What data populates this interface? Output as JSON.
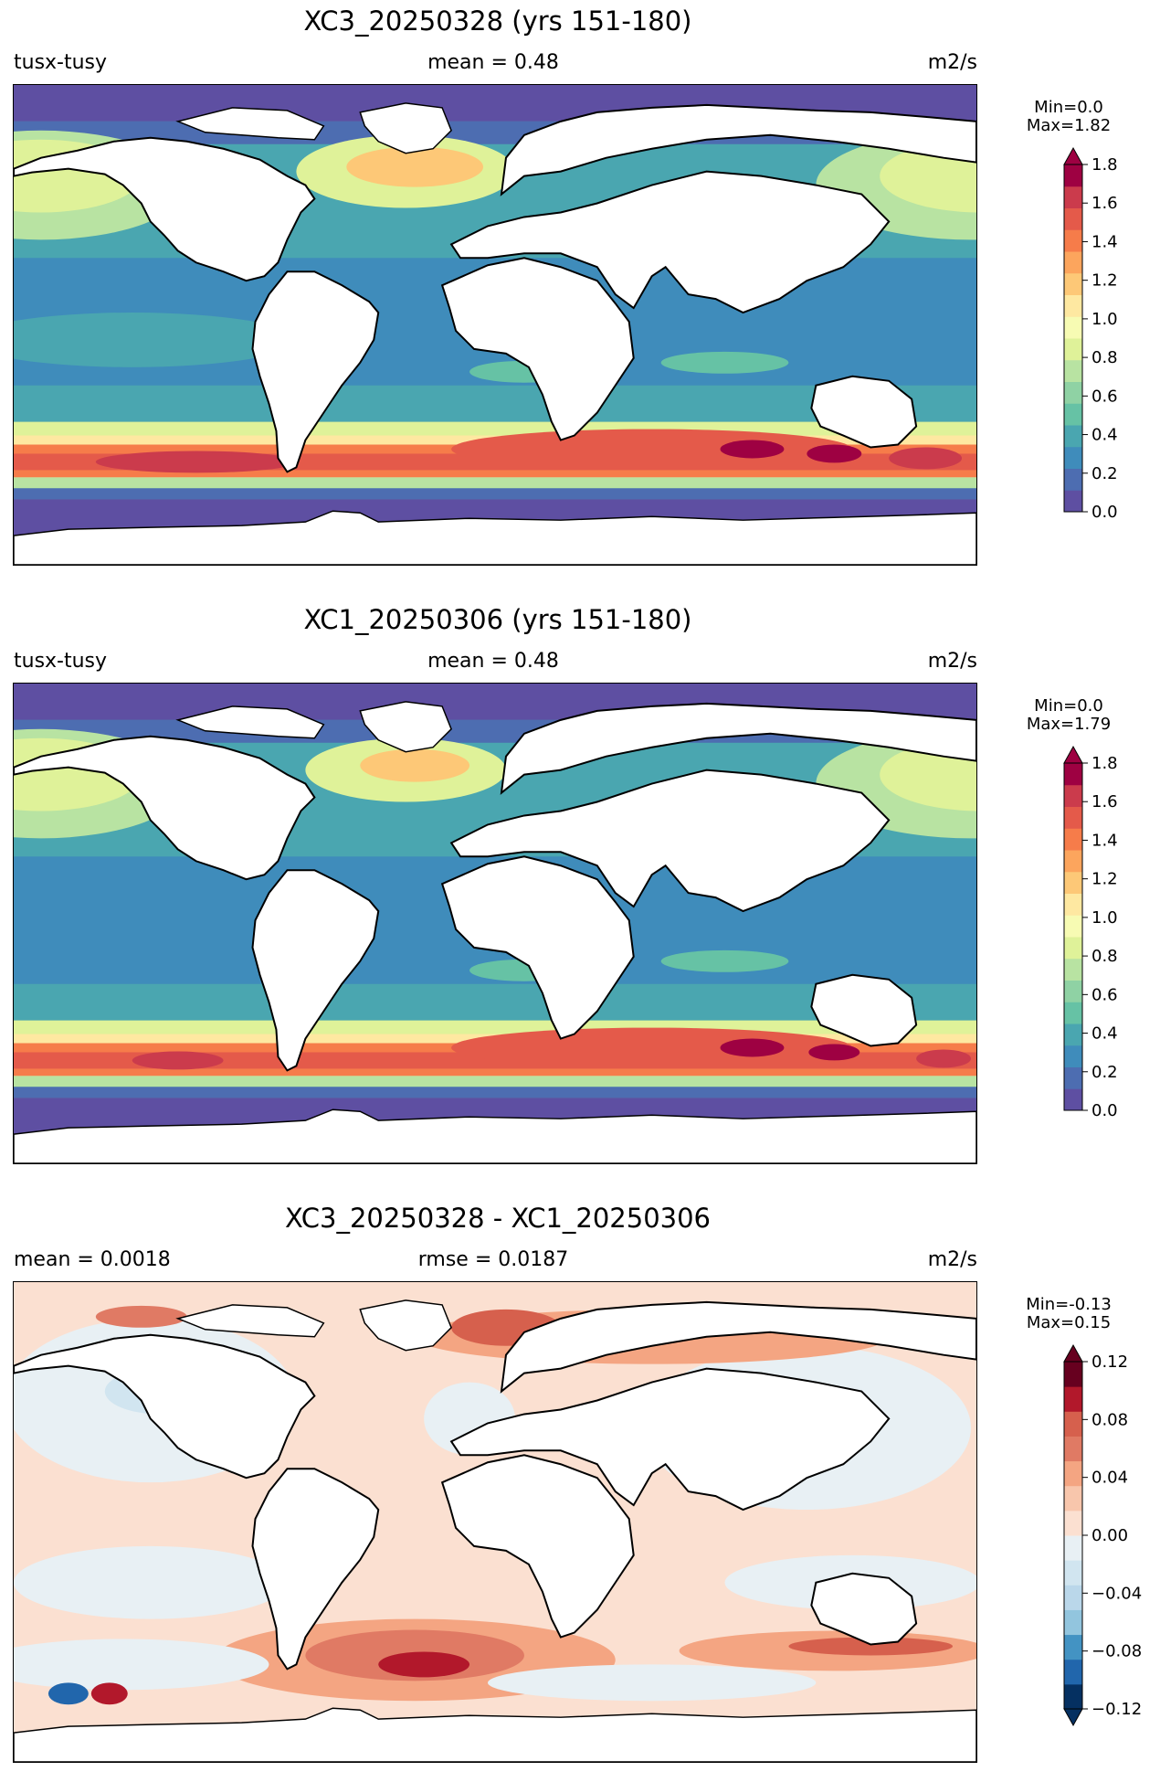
{
  "panels": [
    {
      "title": "XC3_20250328 (yrs 151-180)",
      "left_label": "tusx-tusy",
      "center_label": "mean = 0.48",
      "right_label": "m2/s",
      "min_text": "Min=0.0",
      "max_text": "Max=1.82",
      "colormap": "Spectral_r",
      "colorbar_ticks": [
        "0.0",
        "0.2",
        "0.4",
        "0.6",
        "0.8",
        "1.0",
        "1.2",
        "1.4",
        "1.6",
        "1.8"
      ],
      "colorbar_range": [
        0.0,
        1.8
      ]
    },
    {
      "title": "XC1_20250306 (yrs 151-180)",
      "left_label": "tusx-tusy",
      "center_label": "mean = 0.48",
      "right_label": "m2/s",
      "min_text": "Min=0.0",
      "max_text": "Max=1.79",
      "colormap": "Spectral_r",
      "colorbar_ticks": [
        "0.0",
        "0.2",
        "0.4",
        "0.6",
        "0.8",
        "1.0",
        "1.2",
        "1.4",
        "1.6",
        "1.8"
      ],
      "colorbar_range": [
        0.0,
        1.8
      ]
    },
    {
      "title": "XC3_20250328 - XC1_20250306",
      "left_label": "mean = 0.0018",
      "center_label": "rmse = 0.0187",
      "right_label": "m2/s",
      "min_text": "Min=-0.13",
      "max_text": "Max=0.15",
      "colormap": "RdBu_r",
      "colorbar_ticks": [
        "−0.12",
        "−0.08",
        "−0.04",
        "0.00",
        "0.04",
        "0.08",
        "0.12"
      ],
      "colorbar_range": [
        -0.12,
        0.12
      ]
    }
  ],
  "colors": {
    "spectral": [
      "#5e4fa2",
      "#4d6db1",
      "#3f8cbb",
      "#4aa6b0",
      "#66c2a5",
      "#8fd2a4",
      "#b8e3a2",
      "#dff299",
      "#f7fbb3",
      "#fee8a1",
      "#fdc877",
      "#fca55d",
      "#f67c4a",
      "#e45a4a",
      "#cb3b4c",
      "#9e0142"
    ],
    "rdbu": [
      "#053061",
      "#2166ac",
      "#4393c3",
      "#92c5de",
      "#bad7ea",
      "#d1e5f0",
      "#e8f0f4",
      "#fbe0d1",
      "#f8c6ac",
      "#f4a582",
      "#e07a64",
      "#d6604d",
      "#b2182b",
      "#67001f"
    ]
  }
}
